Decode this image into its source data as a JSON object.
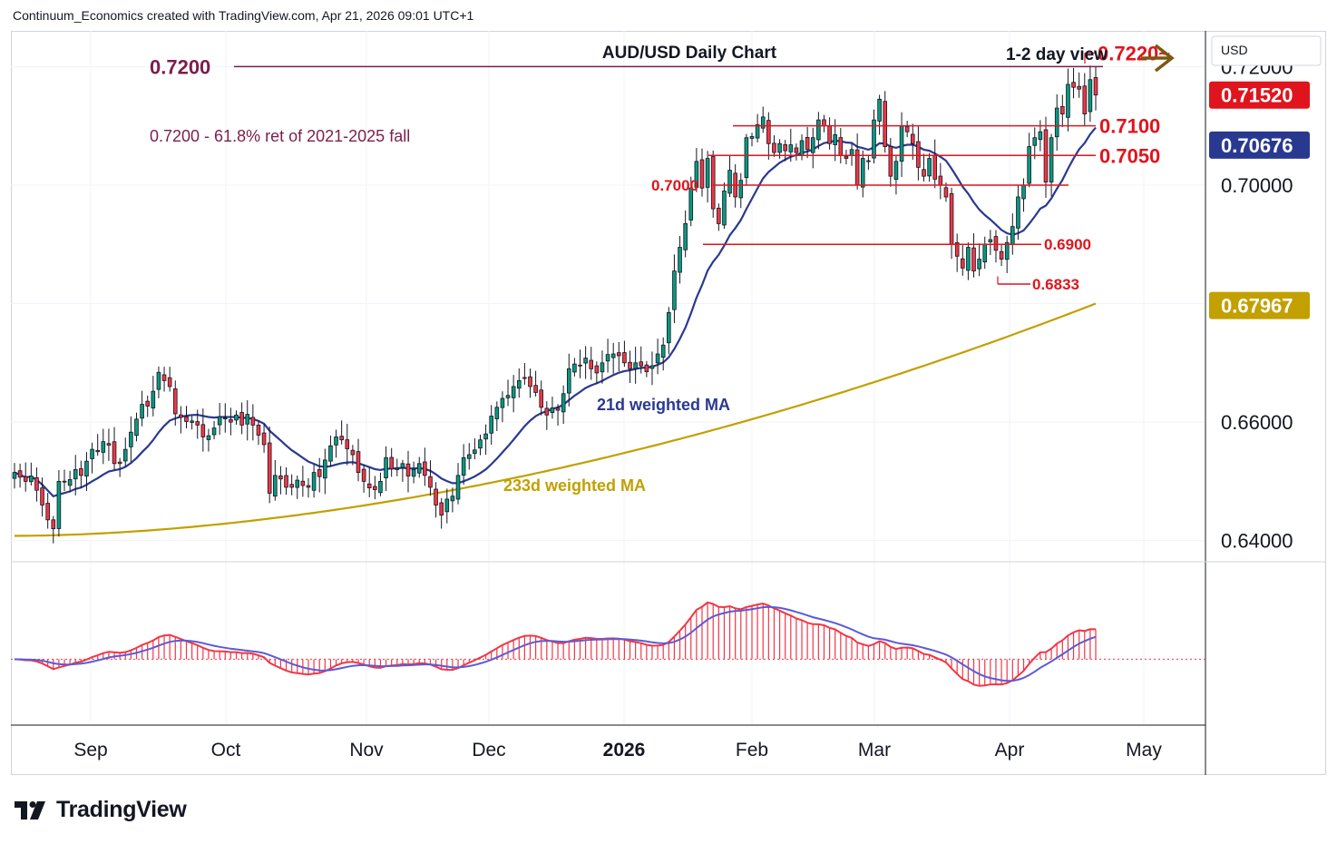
{
  "header": {
    "credit": "Continuum_Economics created with TradingView.com, Apr 21, 2026 09:01 UTC+1"
  },
  "chart_title": "AUD/USD Daily Chart",
  "view_label": "1-2 day view",
  "currency_label": "USD",
  "brand": {
    "name": "TradingView"
  },
  "colors": {
    "up": "#089981",
    "down": "#f23645",
    "level": "#e0141c",
    "retrace": "#7b1e4b",
    "ma21": "#2a3990",
    "ma233": "#c2a000",
    "arrow": "#7a5a10",
    "price_tag": "#e0141c",
    "ma21_tag": "#2a3990",
    "ma233_tag": "#c2a000"
  },
  "chart_data": [
    {
      "type": "candlestick",
      "title": "AUD/USD Daily Chart",
      "ylim": [
        0.6375,
        0.7245
      ],
      "y_ticks": [
        "0.72000",
        "0.70000",
        "0.66000",
        "0.64000"
      ],
      "x_ticks": [
        "Sep",
        "Oct",
        "Nov",
        "Dec",
        "2026",
        "Feb",
        "Mar",
        "Apr",
        "May"
      ],
      "axis_tags": [
        {
          "label": "0.71520",
          "value": 0.7152,
          "kind": "last_price"
        },
        {
          "label": "0.70676",
          "value": 0.70676,
          "kind": "ma21"
        },
        {
          "label": "0.67967",
          "value": 0.67967,
          "kind": "ma233"
        }
      ],
      "levels": [
        {
          "label": "0.7200",
          "value": 0.72,
          "note": "0.7200 - 61.8% ret of 2021-2025 fall"
        },
        {
          "label": "0.7220~",
          "value": 0.722
        },
        {
          "label": "0.7100",
          "value": 0.71
        },
        {
          "label": "0.7050",
          "value": 0.705
        },
        {
          "label": "0.7000",
          "value": 0.7
        },
        {
          "label": "0.6900",
          "value": 0.69
        },
        {
          "label": "0.6833",
          "value": 0.6833
        }
      ],
      "series_labels": [
        "21d weighted MA",
        "233d weighted MA"
      ],
      "closes": [
        0.6515,
        0.6507,
        0.65,
        0.6509,
        0.6485,
        0.646,
        0.6435,
        0.642,
        0.65,
        0.6499,
        0.6503,
        0.652,
        0.651,
        0.6534,
        0.6554,
        0.655,
        0.6567,
        0.6561,
        0.653,
        0.653,
        0.6554,
        0.6583,
        0.6605,
        0.663,
        0.6627,
        0.6652,
        0.6684,
        0.667,
        0.666,
        0.6614,
        0.6608,
        0.6601,
        0.6602,
        0.6595,
        0.6575,
        0.6577,
        0.659,
        0.6609,
        0.6607,
        0.66,
        0.6612,
        0.6595,
        0.6613,
        0.6595,
        0.6578,
        0.6562,
        0.648,
        0.651,
        0.6504,
        0.649,
        0.649,
        0.6502,
        0.6493,
        0.649,
        0.6515,
        0.6508,
        0.6536,
        0.656,
        0.6575,
        0.657,
        0.6555,
        0.6545,
        0.6515,
        0.65,
        0.6489,
        0.6486,
        0.65,
        0.654,
        0.6521,
        0.6522,
        0.653,
        0.6509,
        0.652,
        0.653,
        0.651,
        0.649,
        0.646,
        0.6443,
        0.647,
        0.6475,
        0.651,
        0.654,
        0.6545,
        0.6553,
        0.657,
        0.658,
        0.661,
        0.6625,
        0.664,
        0.6645,
        0.666,
        0.667,
        0.6675,
        0.666,
        0.665,
        0.6625,
        0.6612,
        0.6624,
        0.662,
        0.6648,
        0.669,
        0.6698,
        0.6695,
        0.6708,
        0.669,
        0.6683,
        0.67,
        0.6714,
        0.6715,
        0.6712,
        0.67,
        0.669,
        0.67,
        0.6695,
        0.6685,
        0.6695,
        0.6715,
        0.673,
        0.6785,
        0.6855,
        0.6895,
        0.6935,
        0.6995,
        0.704,
        0.6995,
        0.7045,
        0.696,
        0.6935,
        0.699,
        0.7025,
        0.698,
        0.7008,
        0.708,
        0.7082,
        0.7102,
        0.7115,
        0.707,
        0.7055,
        0.707,
        0.7058,
        0.7068,
        0.7055,
        0.7075,
        0.706,
        0.708,
        0.711,
        0.71,
        0.707,
        0.7085,
        0.705,
        0.7045,
        0.706,
        0.7,
        0.7045,
        0.704,
        0.711,
        0.7145,
        0.7065,
        0.7015,
        0.704,
        0.71,
        0.709,
        0.707,
        0.703,
        0.7015,
        0.7045,
        0.701,
        0.7,
        0.698,
        0.69,
        0.688,
        0.686,
        0.6895,
        0.6855,
        0.6875,
        0.69,
        0.6908,
        0.689,
        0.6875,
        0.6903,
        0.693,
        0.698,
        0.7,
        0.7065,
        0.708,
        0.709,
        0.7005,
        0.708,
        0.713,
        0.712,
        0.717,
        0.7165,
        0.7162,
        0.712,
        0.7178,
        0.7152
      ],
      "osc_ylim": [
        -1.0,
        1.5
      ]
    }
  ]
}
